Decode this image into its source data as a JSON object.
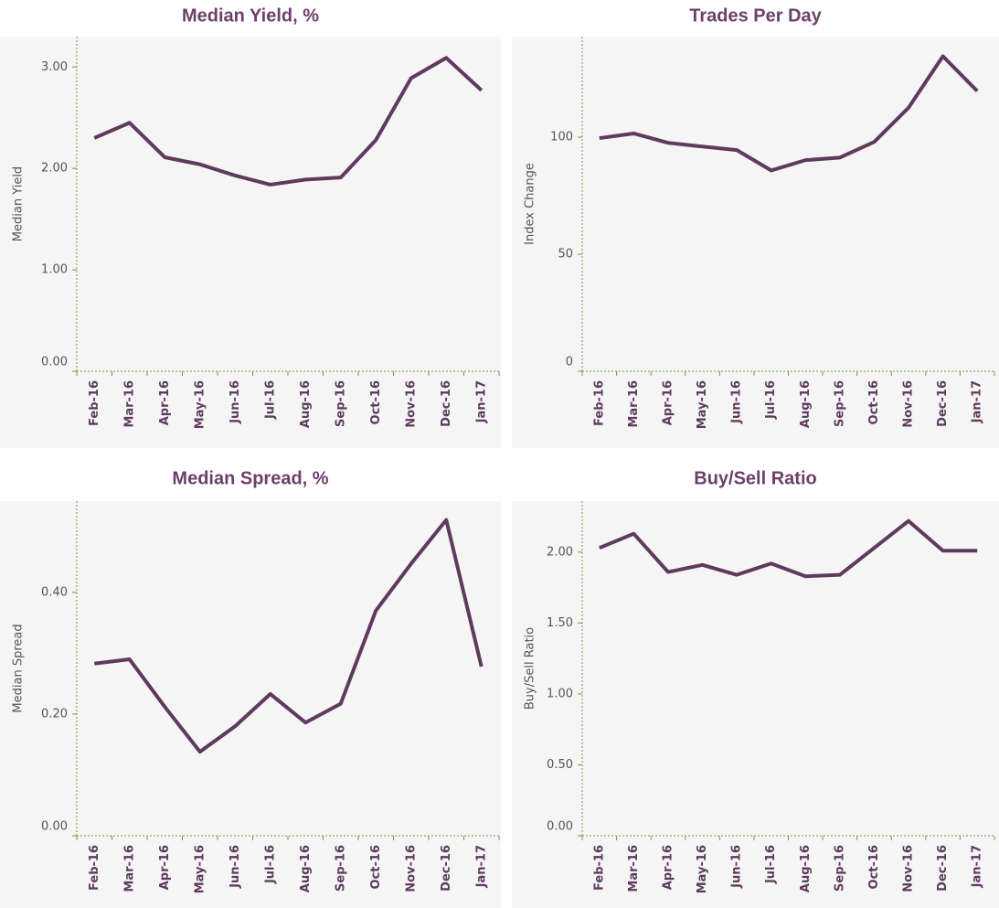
{
  "chart_data": [
    {
      "type": "line",
      "title": "Median Yield, %",
      "ylabel": "Median Yield",
      "color": "#5e3a5e",
      "categories": [
        "Feb-16",
        "Mar-16",
        "Apr-16",
        "May-16",
        "Jun-16",
        "Jul-16",
        "Aug-16",
        "Sep-16",
        "Oct-16",
        "Nov-16",
        "Dec-16",
        "Jan-17"
      ],
      "values": [
        2.3,
        2.45,
        2.11,
        2.04,
        1.93,
        1.84,
        1.89,
        1.91,
        2.28,
        2.89,
        3.09,
        2.77
      ],
      "ylim": [
        0,
        3.3
      ],
      "yticks": [
        {
          "value": 0,
          "label": "0.00"
        },
        {
          "value": 1,
          "label": "1.00"
        },
        {
          "value": 2,
          "label": "2.00"
        },
        {
          "value": 3,
          "label": "3.00"
        }
      ]
    },
    {
      "type": "line",
      "title": "Trades Per Day",
      "ylabel": "Index Change",
      "color": "#5e3a5e",
      "categories": [
        "Feb-16",
        "Mar-16",
        "Apr-16",
        "May-16",
        "Jun-16",
        "Jul-16",
        "Aug-16",
        "Sep-16",
        "Oct-16",
        "Nov-16",
        "Dec-16",
        "Jan-17"
      ],
      "values": [
        99.6,
        101.6,
        97.6,
        96,
        94.5,
        85.8,
        90.2,
        91.3,
        98,
        112.6,
        134.6,
        119.7
      ],
      "ylim": [
        0,
        143
      ],
      "yticks": [
        0,
        50,
        100
      ]
    },
    {
      "type": "line",
      "title": "Median Spread, %",
      "ylabel": "Median Spread",
      "color": "#5e3a5e",
      "categories": [
        "Feb-16",
        "Mar-16",
        "Apr-16",
        "May-16",
        "Jun-16",
        "Jul-16",
        "Aug-16",
        "Sep-16",
        "Oct-16",
        "Nov-16",
        "Dec-16",
        "Jan-17"
      ],
      "values": [
        0.283,
        0.29,
        0.212,
        0.138,
        0.18,
        0.233,
        0.186,
        0.217,
        0.37,
        0.447,
        0.519,
        0.278
      ],
      "ylim": [
        0,
        0.55
      ],
      "yticks": [
        {
          "value": 0,
          "label": "0.00"
        },
        {
          "value": 0.2,
          "label": "0.20"
        },
        {
          "value": 0.4,
          "label": "0.40"
        }
      ]
    },
    {
      "type": "line",
      "title": "Buy/Sell Ratio",
      "ylabel": "Buy/Sell Ratio",
      "color": "#5e3a5e",
      "categories": [
        "Feb-16",
        "Mar-16",
        "Apr-16",
        "May-16",
        "Jun-16",
        "Jul-16",
        "Aug-16",
        "Sep-16",
        "Oct-16",
        "Nov-16",
        "Dec-16",
        "Jan-17"
      ],
      "values": [
        2.03,
        2.13,
        1.86,
        1.91,
        1.84,
        1.92,
        1.83,
        1.84,
        2.03,
        2.22,
        2.01,
        2.01
      ],
      "ylim": [
        0,
        2.36
      ],
      "yticks": [
        {
          "value": 0,
          "label": "0.00"
        },
        {
          "value": 0.5,
          "label": "0.50"
        },
        {
          "value": 1,
          "label": "1.00"
        },
        {
          "value": 1.5,
          "label": "1.50"
        },
        {
          "value": 2,
          "label": "2.00"
        }
      ]
    }
  ]
}
